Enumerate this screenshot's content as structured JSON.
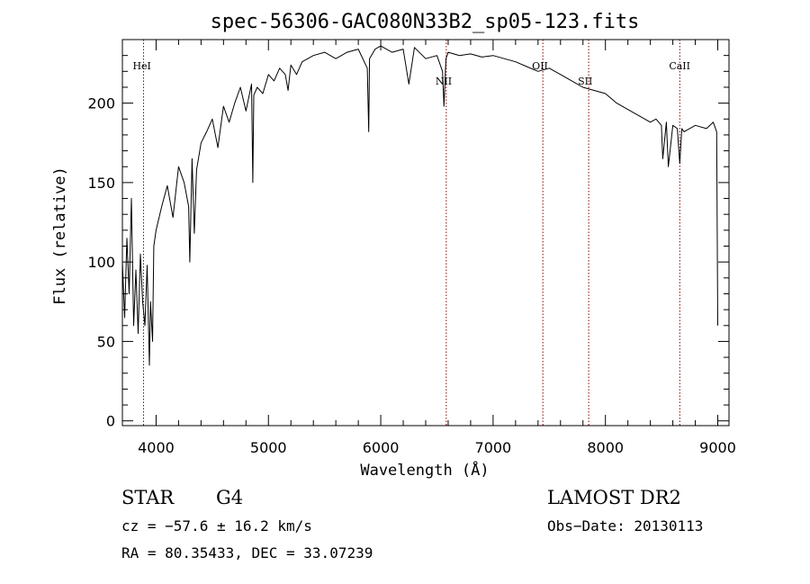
{
  "chart_data": {
    "type": "line",
    "title": "spec-56306-GAC080N33B2_sp05-123.fits",
    "xlabel": "Wavelength (Å)",
    "ylabel": "Flux (relative)",
    "xlim": [
      3700,
      9100
    ],
    "ylim": [
      -3,
      240
    ],
    "xticks": [
      4000,
      5000,
      6000,
      7000,
      8000,
      9000
    ],
    "yticks": [
      0,
      50,
      100,
      150,
      200
    ],
    "xtick_labels": [
      "4000",
      "5000",
      "6000",
      "7000",
      "8000",
      "9000"
    ],
    "ytick_labels": [
      "0",
      "50",
      "100",
      "150",
      "200"
    ],
    "grid": false,
    "color": "#000000",
    "line_markers": [
      {
        "name": "HeI",
        "x": 3888
      },
      {
        "name": "NII",
        "x": 6583
      },
      {
        "name": "OII",
        "x": 7443
      },
      {
        "name": "SII",
        "x": 7851
      },
      {
        "name": "CaII",
        "x": 8662
      }
    ],
    "marker_color": "#8b0000",
    "series": [
      {
        "name": "spectrum",
        "x": [
          3700,
          3720,
          3740,
          3760,
          3780,
          3800,
          3820,
          3840,
          3860,
          3880,
          3900,
          3920,
          3940,
          3950,
          3968,
          3980,
          4000,
          4050,
          4100,
          4150,
          4200,
          4250,
          4290,
          4300,
          4320,
          4340,
          4360,
          4400,
          4450,
          4500,
          4550,
          4600,
          4650,
          4700,
          4750,
          4800,
          4850,
          4861,
          4870,
          4900,
          4950,
          5000,
          5050,
          5100,
          5150,
          5175,
          5200,
          5250,
          5300,
          5400,
          5500,
          5600,
          5700,
          5800,
          5880,
          5893,
          5900,
          5950,
          6000,
          6100,
          6200,
          6250,
          6300,
          6400,
          6500,
          6550,
          6563,
          6580,
          6600,
          6700,
          6800,
          6900,
          7000,
          7100,
          7200,
          7300,
          7400,
          7500,
          7600,
          7700,
          7800,
          7900,
          8000,
          8100,
          8200,
          8300,
          8400,
          8450,
          8498,
          8510,
          8542,
          8560,
          8600,
          8640,
          8662,
          8680,
          8700,
          8800,
          8900,
          8960,
          8990,
          9000
        ],
        "y": [
          100,
          65,
          115,
          80,
          140,
          60,
          95,
          55,
          105,
          75,
          60,
          98,
          35,
          75,
          50,
          110,
          120,
          135,
          148,
          128,
          160,
          150,
          135,
          100,
          165,
          118,
          158,
          175,
          182,
          190,
          172,
          198,
          188,
          200,
          210,
          195,
          212,
          150,
          205,
          210,
          206,
          218,
          214,
          222,
          218,
          208,
          224,
          218,
          226,
          230,
          232,
          228,
          232,
          234,
          222,
          182,
          228,
          234,
          236,
          232,
          234,
          212,
          235,
          228,
          230,
          220,
          198,
          228,
          232,
          230,
          231,
          229,
          230,
          228,
          226,
          223,
          220,
          222,
          218,
          214,
          210,
          208,
          206,
          200,
          196,
          192,
          188,
          190,
          186,
          165,
          188,
          160,
          186,
          184,
          162,
          184,
          182,
          186,
          184,
          188,
          182,
          60
        ]
      }
    ]
  },
  "footer": {
    "object_class": "STAR",
    "subclass": "G4",
    "cz": "cz = −57.6 ± 16.2 km/s",
    "coords": "RA =  80.35433, DEC =  33.07239",
    "survey": "LAMOST DR2",
    "obs_date": "Obs−Date: 20130113"
  }
}
